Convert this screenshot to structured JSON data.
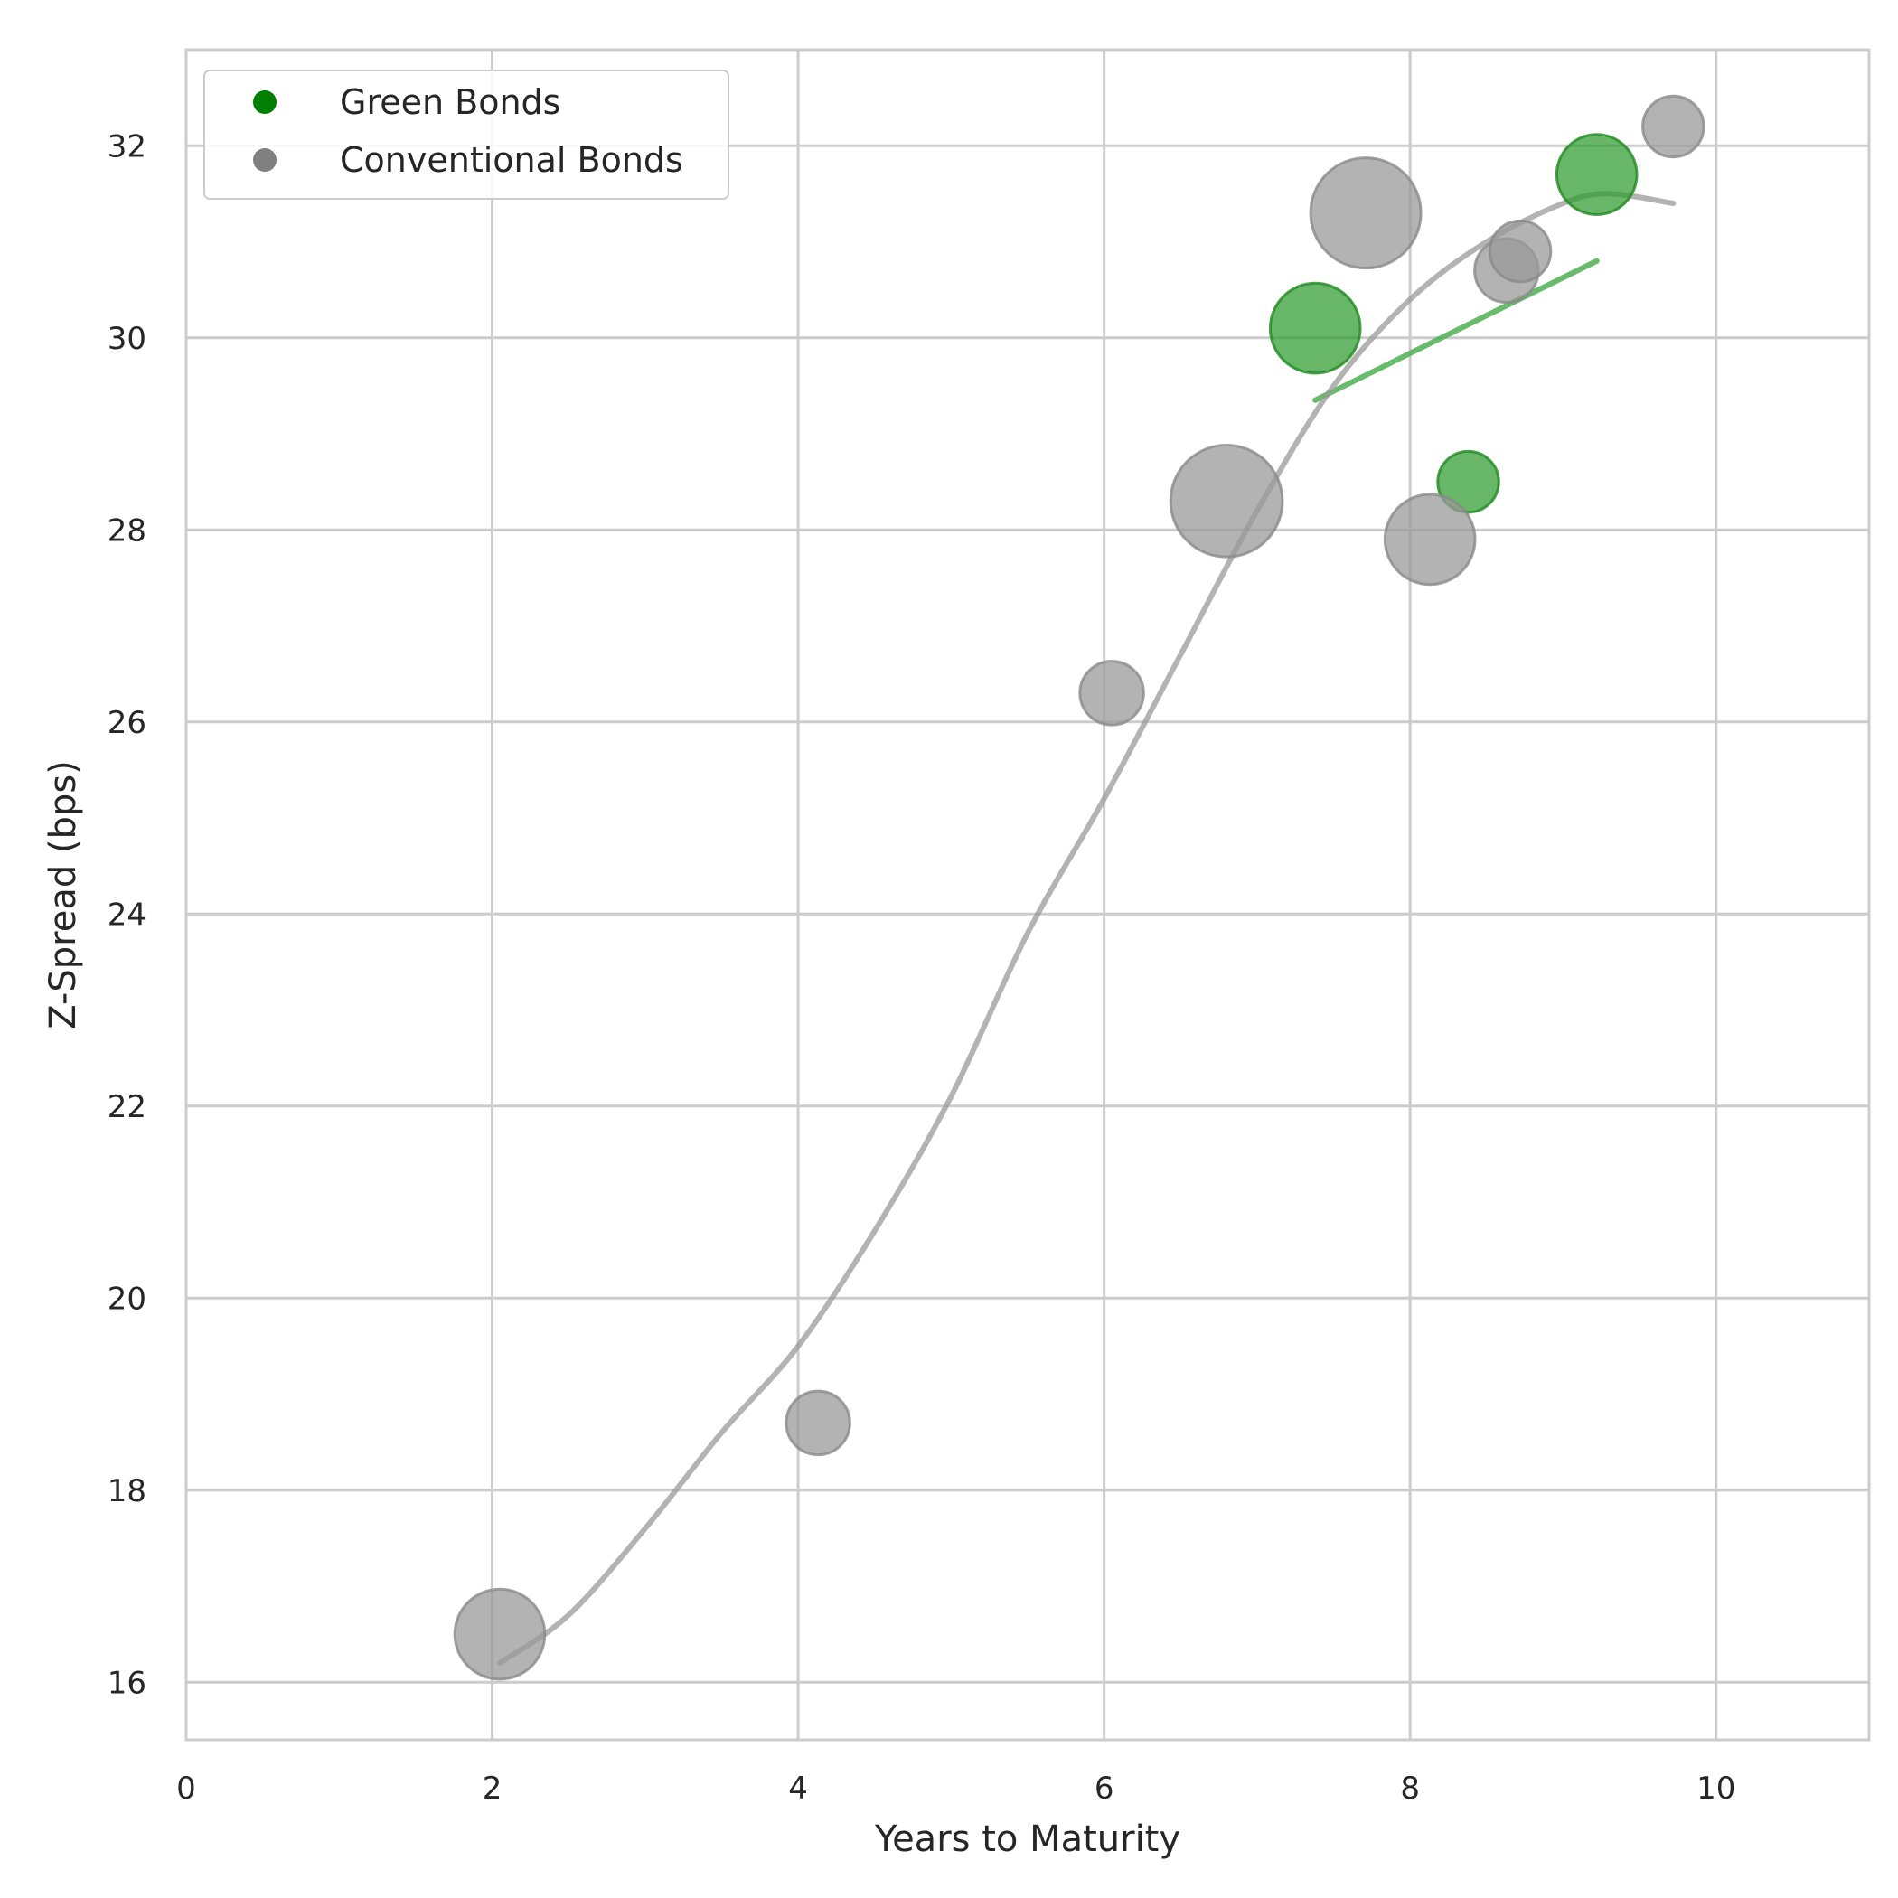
{
  "chart_data": {
    "type": "scatter",
    "title": "",
    "xlabel": "Years to Maturity",
    "ylabel": "Z-Spread (bps)",
    "xlim": [
      0,
      11
    ],
    "ylim": [
      15.4,
      33.0
    ],
    "xticks": [
      0,
      2,
      4,
      6,
      8,
      10
    ],
    "yticks": [
      16,
      18,
      20,
      22,
      24,
      26,
      28,
      30,
      32
    ],
    "grid": true,
    "legend_position": "top-left",
    "series": [
      {
        "name": "Green Bonds",
        "color": "#008000",
        "points": [
          {
            "x": 7.38,
            "y": 30.1,
            "size": 2.4
          },
          {
            "x": 8.38,
            "y": 28.5,
            "size": 1.1
          },
          {
            "x": 9.22,
            "y": 31.7,
            "size": 1.9
          }
        ],
        "trend": {
          "type": "linear",
          "x_range": [
            7.38,
            9.22
          ],
          "y_range": [
            29.35,
            30.8
          ]
        }
      },
      {
        "name": "Conventional Bonds",
        "color": "#808080",
        "points": [
          {
            "x": 2.05,
            "y": 16.5,
            "size": 2.4
          },
          {
            "x": 4.13,
            "y": 18.7,
            "size": 1.2
          },
          {
            "x": 6.05,
            "y": 26.3,
            "size": 1.2
          },
          {
            "x": 6.8,
            "y": 28.3,
            "size": 3.7
          },
          {
            "x": 7.71,
            "y": 31.3,
            "size": 3.6
          },
          {
            "x": 8.13,
            "y": 27.9,
            "size": 2.4
          },
          {
            "x": 8.63,
            "y": 30.7,
            "size": 1.2
          },
          {
            "x": 8.72,
            "y": 30.9,
            "size": 1.1
          },
          {
            "x": 9.72,
            "y": 32.2,
            "size": 1.1
          }
        ],
        "trend": {
          "type": "smooth",
          "points": [
            [
              2.05,
              16.2
            ],
            [
              2.5,
              16.7
            ],
            [
              3.0,
              17.6
            ],
            [
              3.5,
              18.6
            ],
            [
              4.0,
              19.5
            ],
            [
              4.5,
              20.7
            ],
            [
              5.0,
              22.1
            ],
            [
              5.5,
              23.8
            ],
            [
              6.0,
              25.2
            ],
            [
              6.5,
              26.7
            ],
            [
              7.0,
              28.2
            ],
            [
              7.5,
              29.5
            ],
            [
              8.0,
              30.4
            ],
            [
              8.5,
              31.0
            ],
            [
              9.0,
              31.4
            ],
            [
              9.3,
              31.5
            ],
            [
              9.72,
              31.4
            ]
          ]
        }
      }
    ]
  }
}
